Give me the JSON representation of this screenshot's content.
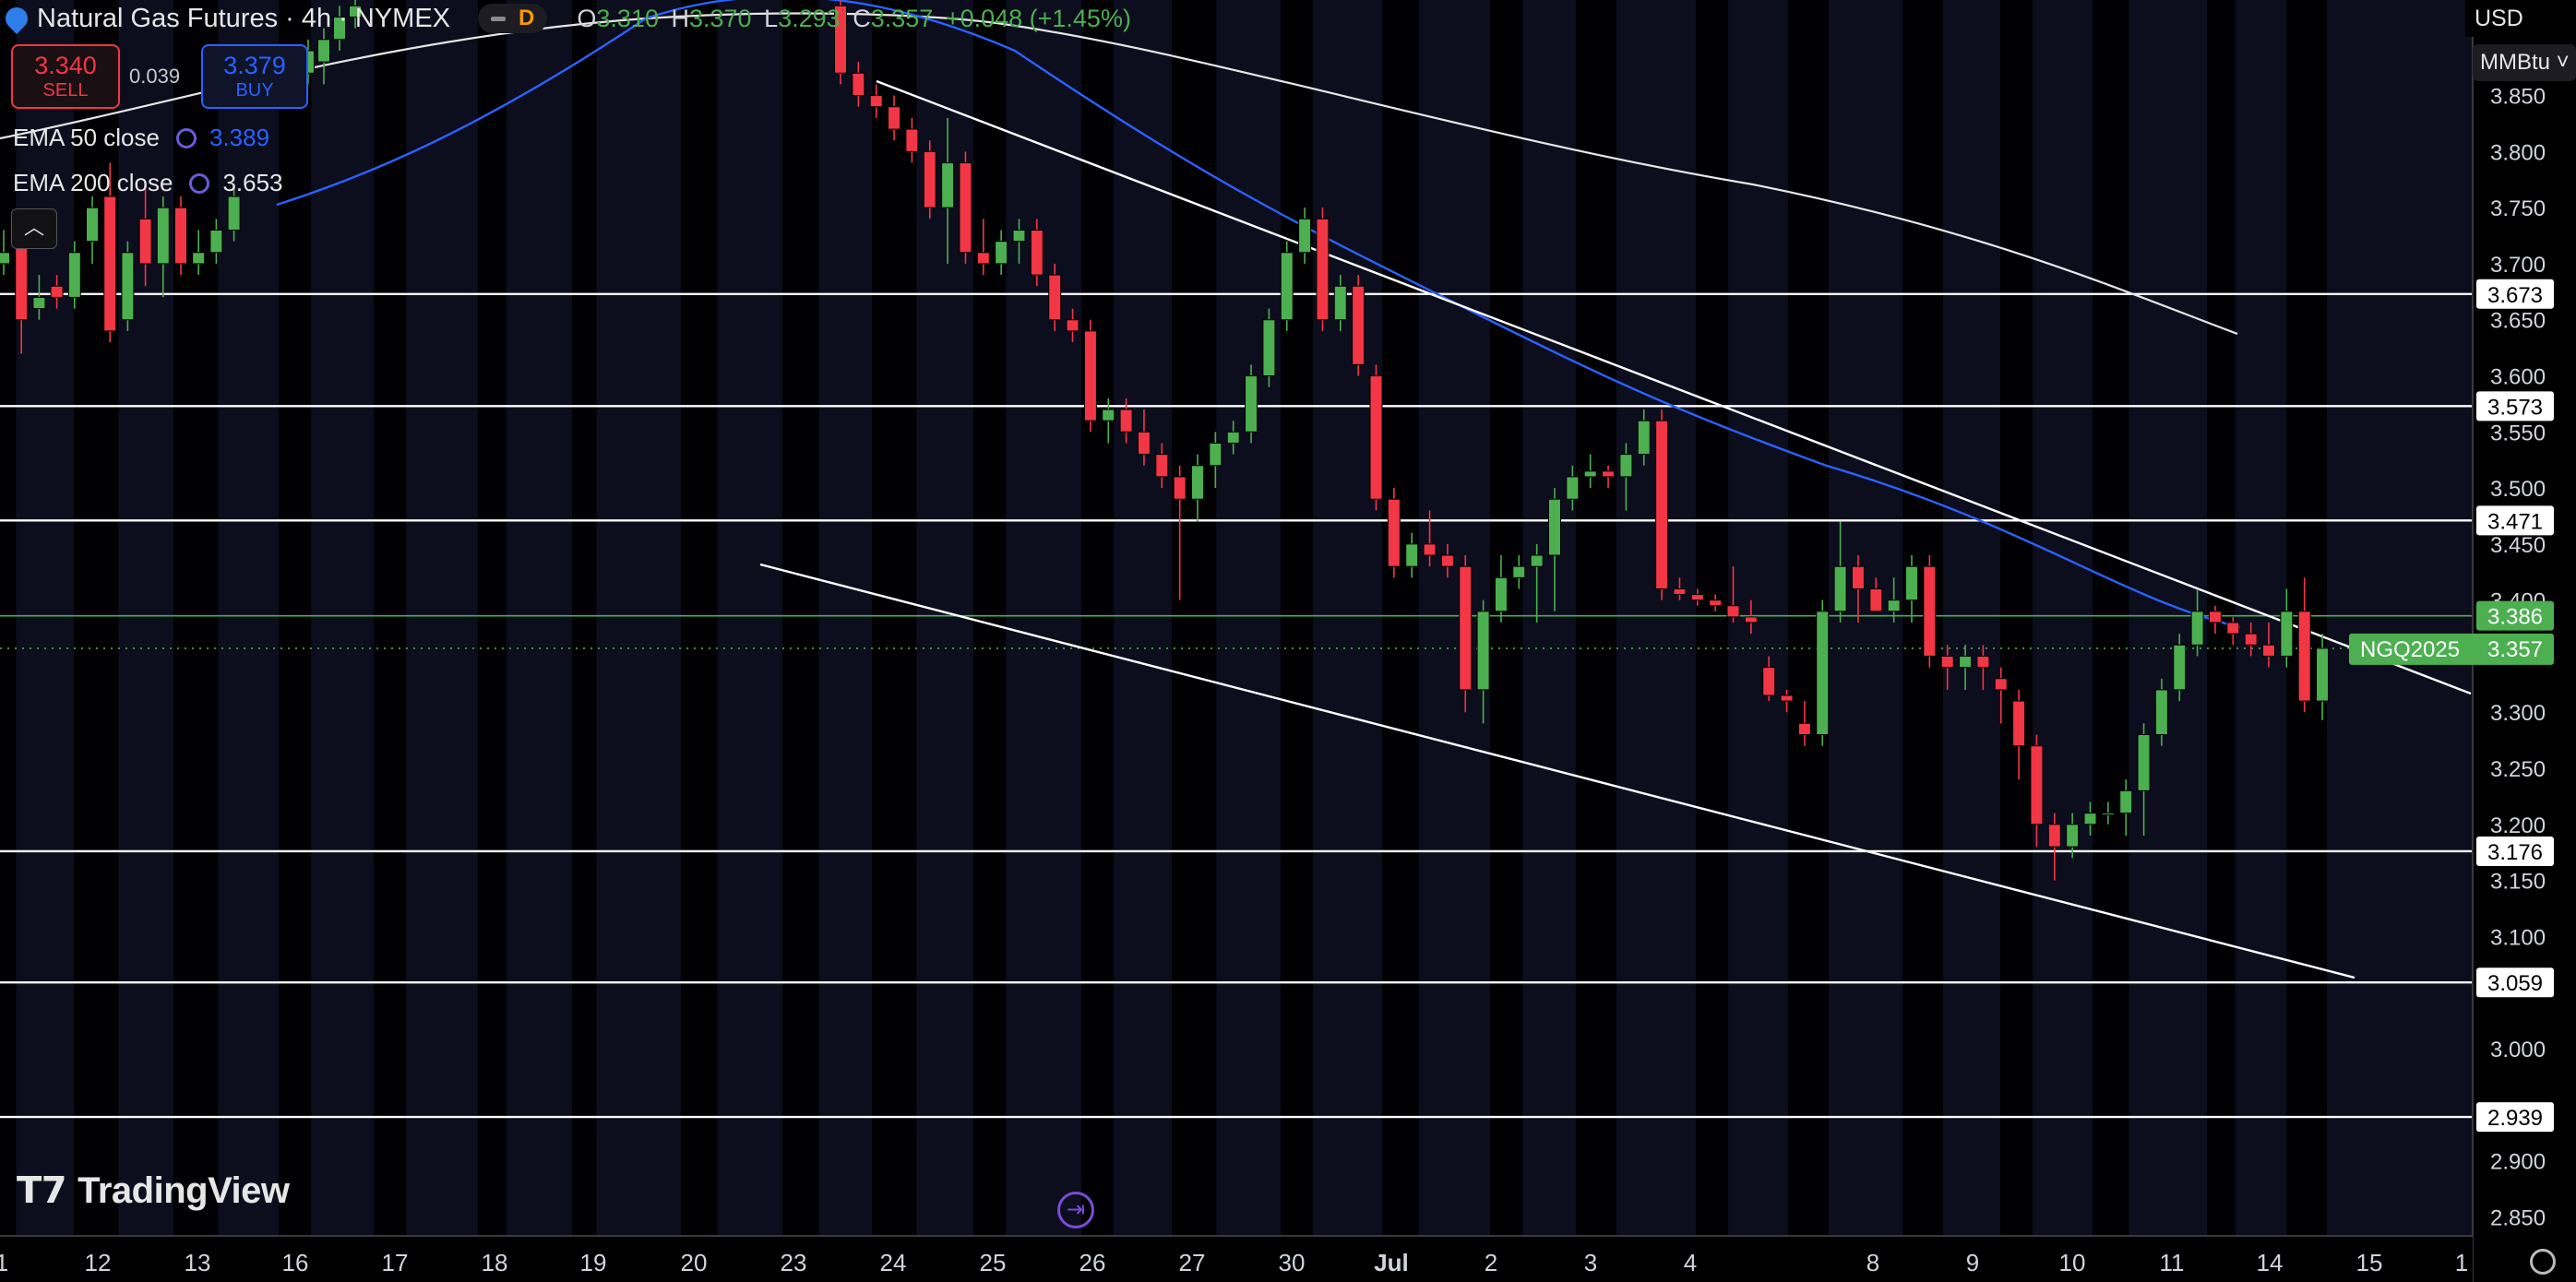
{
  "header": {
    "symbol_title": "Natural Gas Futures · 4h · NYMEX",
    "session_badge": "D",
    "ohlc": [
      {
        "k": "O",
        "v": "3.310"
      },
      {
        "k": "H",
        "v": "3.370"
      },
      {
        "k": "L",
        "v": "3.293"
      },
      {
        "k": "C",
        "v": "3.357"
      }
    ],
    "change": "+0.048 (+1.45%)"
  },
  "trade": {
    "sell_price": "3.340",
    "sell_label": "SELL",
    "spread": "0.039",
    "buy_price": "3.379",
    "buy_label": "BUY"
  },
  "indicators": [
    {
      "label": "EMA 50 close",
      "value": "3.389",
      "color": "#2962ff"
    },
    {
      "label": "EMA 200 close",
      "value": "3.653",
      "color": "#e6e6e6"
    }
  ],
  "axis_controls": {
    "currency": "USD",
    "unit": "MMBtu"
  },
  "brand": "TradingView",
  "colors": {
    "up": "#4caf50",
    "down": "#f23645",
    "ema50": "#2962ff",
    "ema200": "#e6e6e6",
    "current": "#4caf50"
  },
  "chart_data": {
    "type": "candlestick",
    "timeframe": "4h",
    "ylim": [
      2.84,
      3.935
    ],
    "y_ticks": [
      "3.850",
      "3.800",
      "3.750",
      "3.700",
      "3.650",
      "3.600",
      "3.550",
      "3.500",
      "3.450",
      "3.400",
      "3.300",
      "3.250",
      "3.200",
      "3.150",
      "3.100",
      "3.000",
      "2.900",
      "2.850"
    ],
    "x_ticks": [
      "1",
      "12",
      "13",
      "16",
      "17",
      "18",
      "19",
      "20",
      "23",
      "24",
      "25",
      "26",
      "27",
      "30",
      "Jul",
      "2",
      "3",
      "4",
      "8",
      "9",
      "10",
      "11",
      "14",
      "15",
      "1"
    ],
    "horizontal_levels": [
      3.673,
      3.573,
      3.471,
      3.176,
      3.059,
      2.939
    ],
    "ema50_level_label": "3.386",
    "current_price": {
      "symbol": "NGQ2025",
      "value": "3.357"
    },
    "trendlines": [
      {
        "from": [
          "23",
          3.872
        ],
        "to": [
          "15",
          3.38
        ]
      },
      {
        "from": [
          "20",
          3.445
        ],
        "to": [
          "15",
          3.087
        ]
      }
    ],
    "candles": [
      [
        3.7,
        3.73,
        3.69,
        3.71
      ],
      [
        3.72,
        3.74,
        3.62,
        3.65
      ],
      [
        3.66,
        3.69,
        3.65,
        3.67
      ],
      [
        3.68,
        3.69,
        3.66,
        3.67
      ],
      [
        3.67,
        3.72,
        3.66,
        3.71
      ],
      [
        3.72,
        3.76,
        3.7,
        3.75
      ],
      [
        3.76,
        3.79,
        3.63,
        3.64
      ],
      [
        3.65,
        3.72,
        3.64,
        3.71
      ],
      [
        3.74,
        3.77,
        3.68,
        3.7
      ],
      [
        3.7,
        3.76,
        3.67,
        3.75
      ],
      [
        3.75,
        3.76,
        3.69,
        3.7
      ],
      [
        3.7,
        3.73,
        3.69,
        3.71
      ],
      [
        3.71,
        3.74,
        3.7,
        3.73
      ],
      [
        3.73,
        3.77,
        3.72,
        3.76
      ],
      [
        3.86,
        3.87,
        3.84,
        3.85
      ],
      [
        3.85,
        3.88,
        3.84,
        3.87
      ],
      [
        3.87,
        3.9,
        3.86,
        3.89
      ],
      [
        3.88,
        3.91,
        3.86,
        3.9
      ],
      [
        3.9,
        3.93,
        3.89,
        3.92
      ],
      [
        3.92,
        3.94,
        3.91,
        3.93
      ],
      [
        3.93,
        3.935,
        3.86,
        3.87
      ],
      [
        3.87,
        3.88,
        3.84,
        3.85
      ],
      [
        3.85,
        3.86,
        3.83,
        3.84
      ],
      [
        3.84,
        3.85,
        3.81,
        3.82
      ],
      [
        3.82,
        3.83,
        3.79,
        3.8
      ],
      [
        3.8,
        3.81,
        3.74,
        3.75
      ],
      [
        3.75,
        3.83,
        3.7,
        3.79
      ],
      [
        3.79,
        3.8,
        3.7,
        3.71
      ],
      [
        3.71,
        3.74,
        3.69,
        3.7
      ],
      [
        3.7,
        3.73,
        3.69,
        3.72
      ],
      [
        3.72,
        3.74,
        3.7,
        3.73
      ],
      [
        3.73,
        3.74,
        3.68,
        3.69
      ],
      [
        3.69,
        3.7,
        3.64,
        3.65
      ],
      [
        3.65,
        3.66,
        3.63,
        3.64
      ],
      [
        3.64,
        3.65,
        3.55,
        3.56
      ],
      [
        3.56,
        3.58,
        3.54,
        3.57
      ],
      [
        3.57,
        3.58,
        3.54,
        3.55
      ],
      [
        3.55,
        3.57,
        3.52,
        3.53
      ],
      [
        3.53,
        3.54,
        3.5,
        3.51
      ],
      [
        3.51,
        3.52,
        3.4,
        3.49
      ],
      [
        3.49,
        3.53,
        3.47,
        3.52
      ],
      [
        3.52,
        3.55,
        3.5,
        3.54
      ],
      [
        3.54,
        3.56,
        3.53,
        3.55
      ],
      [
        3.55,
        3.61,
        3.54,
        3.6
      ],
      [
        3.6,
        3.66,
        3.59,
        3.65
      ],
      [
        3.65,
        3.72,
        3.64,
        3.71
      ],
      [
        3.71,
        3.75,
        3.7,
        3.74
      ],
      [
        3.74,
        3.75,
        3.64,
        3.65
      ],
      [
        3.65,
        3.69,
        3.64,
        3.68
      ],
      [
        3.68,
        3.69,
        3.6,
        3.61
      ],
      [
        3.6,
        3.61,
        3.48,
        3.49
      ],
      [
        3.49,
        3.5,
        3.42,
        3.43
      ],
      [
        3.43,
        3.46,
        3.42,
        3.45
      ],
      [
        3.45,
        3.48,
        3.43,
        3.44
      ],
      [
        3.44,
        3.45,
        3.42,
        3.43
      ],
      [
        3.43,
        3.44,
        3.3,
        3.32
      ],
      [
        3.32,
        3.4,
        3.29,
        3.39
      ],
      [
        3.39,
        3.44,
        3.38,
        3.42
      ],
      [
        3.42,
        3.44,
        3.41,
        3.43
      ],
      [
        3.43,
        3.45,
        3.38,
        3.44
      ],
      [
        3.44,
        3.5,
        3.39,
        3.49
      ],
      [
        3.49,
        3.52,
        3.48,
        3.51
      ],
      [
        3.51,
        3.53,
        3.5,
        3.515
      ],
      [
        3.515,
        3.52,
        3.5,
        3.51
      ],
      [
        3.51,
        3.54,
        3.48,
        3.53
      ],
      [
        3.53,
        3.57,
        3.52,
        3.56
      ],
      [
        3.56,
        3.57,
        3.4,
        3.41
      ],
      [
        3.41,
        3.42,
        3.4,
        3.405
      ],
      [
        3.405,
        3.41,
        3.395,
        3.4
      ],
      [
        3.4,
        3.405,
        3.39,
        3.395
      ],
      [
        3.395,
        3.43,
        3.38,
        3.385
      ],
      [
        3.385,
        3.4,
        3.37,
        3.38
      ],
      [
        3.34,
        3.35,
        3.31,
        3.315
      ],
      [
        3.315,
        3.32,
        3.3,
        3.31
      ],
      [
        3.29,
        3.31,
        3.27,
        3.28
      ],
      [
        3.28,
        3.4,
        3.27,
        3.39
      ],
      [
        3.39,
        3.47,
        3.38,
        3.43
      ],
      [
        3.43,
        3.44,
        3.38,
        3.41
      ],
      [
        3.41,
        3.42,
        3.39,
        3.39
      ],
      [
        3.39,
        3.42,
        3.38,
        3.4
      ],
      [
        3.4,
        3.44,
        3.38,
        3.43
      ],
      [
        3.43,
        3.44,
        3.34,
        3.35
      ],
      [
        3.35,
        3.36,
        3.32,
        3.34
      ],
      [
        3.34,
        3.36,
        3.32,
        3.35
      ],
      [
        3.35,
        3.36,
        3.32,
        3.34
      ],
      [
        3.33,
        3.34,
        3.29,
        3.32
      ],
      [
        3.31,
        3.32,
        3.24,
        3.27
      ],
      [
        3.27,
        3.28,
        3.18,
        3.2
      ],
      [
        3.2,
        3.21,
        3.15,
        3.18
      ],
      [
        3.18,
        3.21,
        3.17,
        3.2
      ],
      [
        3.2,
        3.22,
        3.19,
        3.21
      ],
      [
        3.21,
        3.22,
        3.2,
        3.21
      ],
      [
        3.21,
        3.24,
        3.19,
        3.23
      ],
      [
        3.23,
        3.29,
        3.19,
        3.28
      ],
      [
        3.28,
        3.33,
        3.27,
        3.32
      ],
      [
        3.32,
        3.37,
        3.31,
        3.36
      ],
      [
        3.36,
        3.41,
        3.35,
        3.39
      ],
      [
        3.39,
        3.395,
        3.37,
        3.38
      ],
      [
        3.38,
        3.385,
        3.36,
        3.37
      ],
      [
        3.37,
        3.38,
        3.35,
        3.36
      ],
      [
        3.36,
        3.38,
        3.34,
        3.35
      ],
      [
        3.35,
        3.41,
        3.34,
        3.39
      ],
      [
        3.39,
        3.42,
        3.3,
        3.31
      ],
      [
        3.31,
        3.37,
        3.293,
        3.357
      ]
    ]
  }
}
